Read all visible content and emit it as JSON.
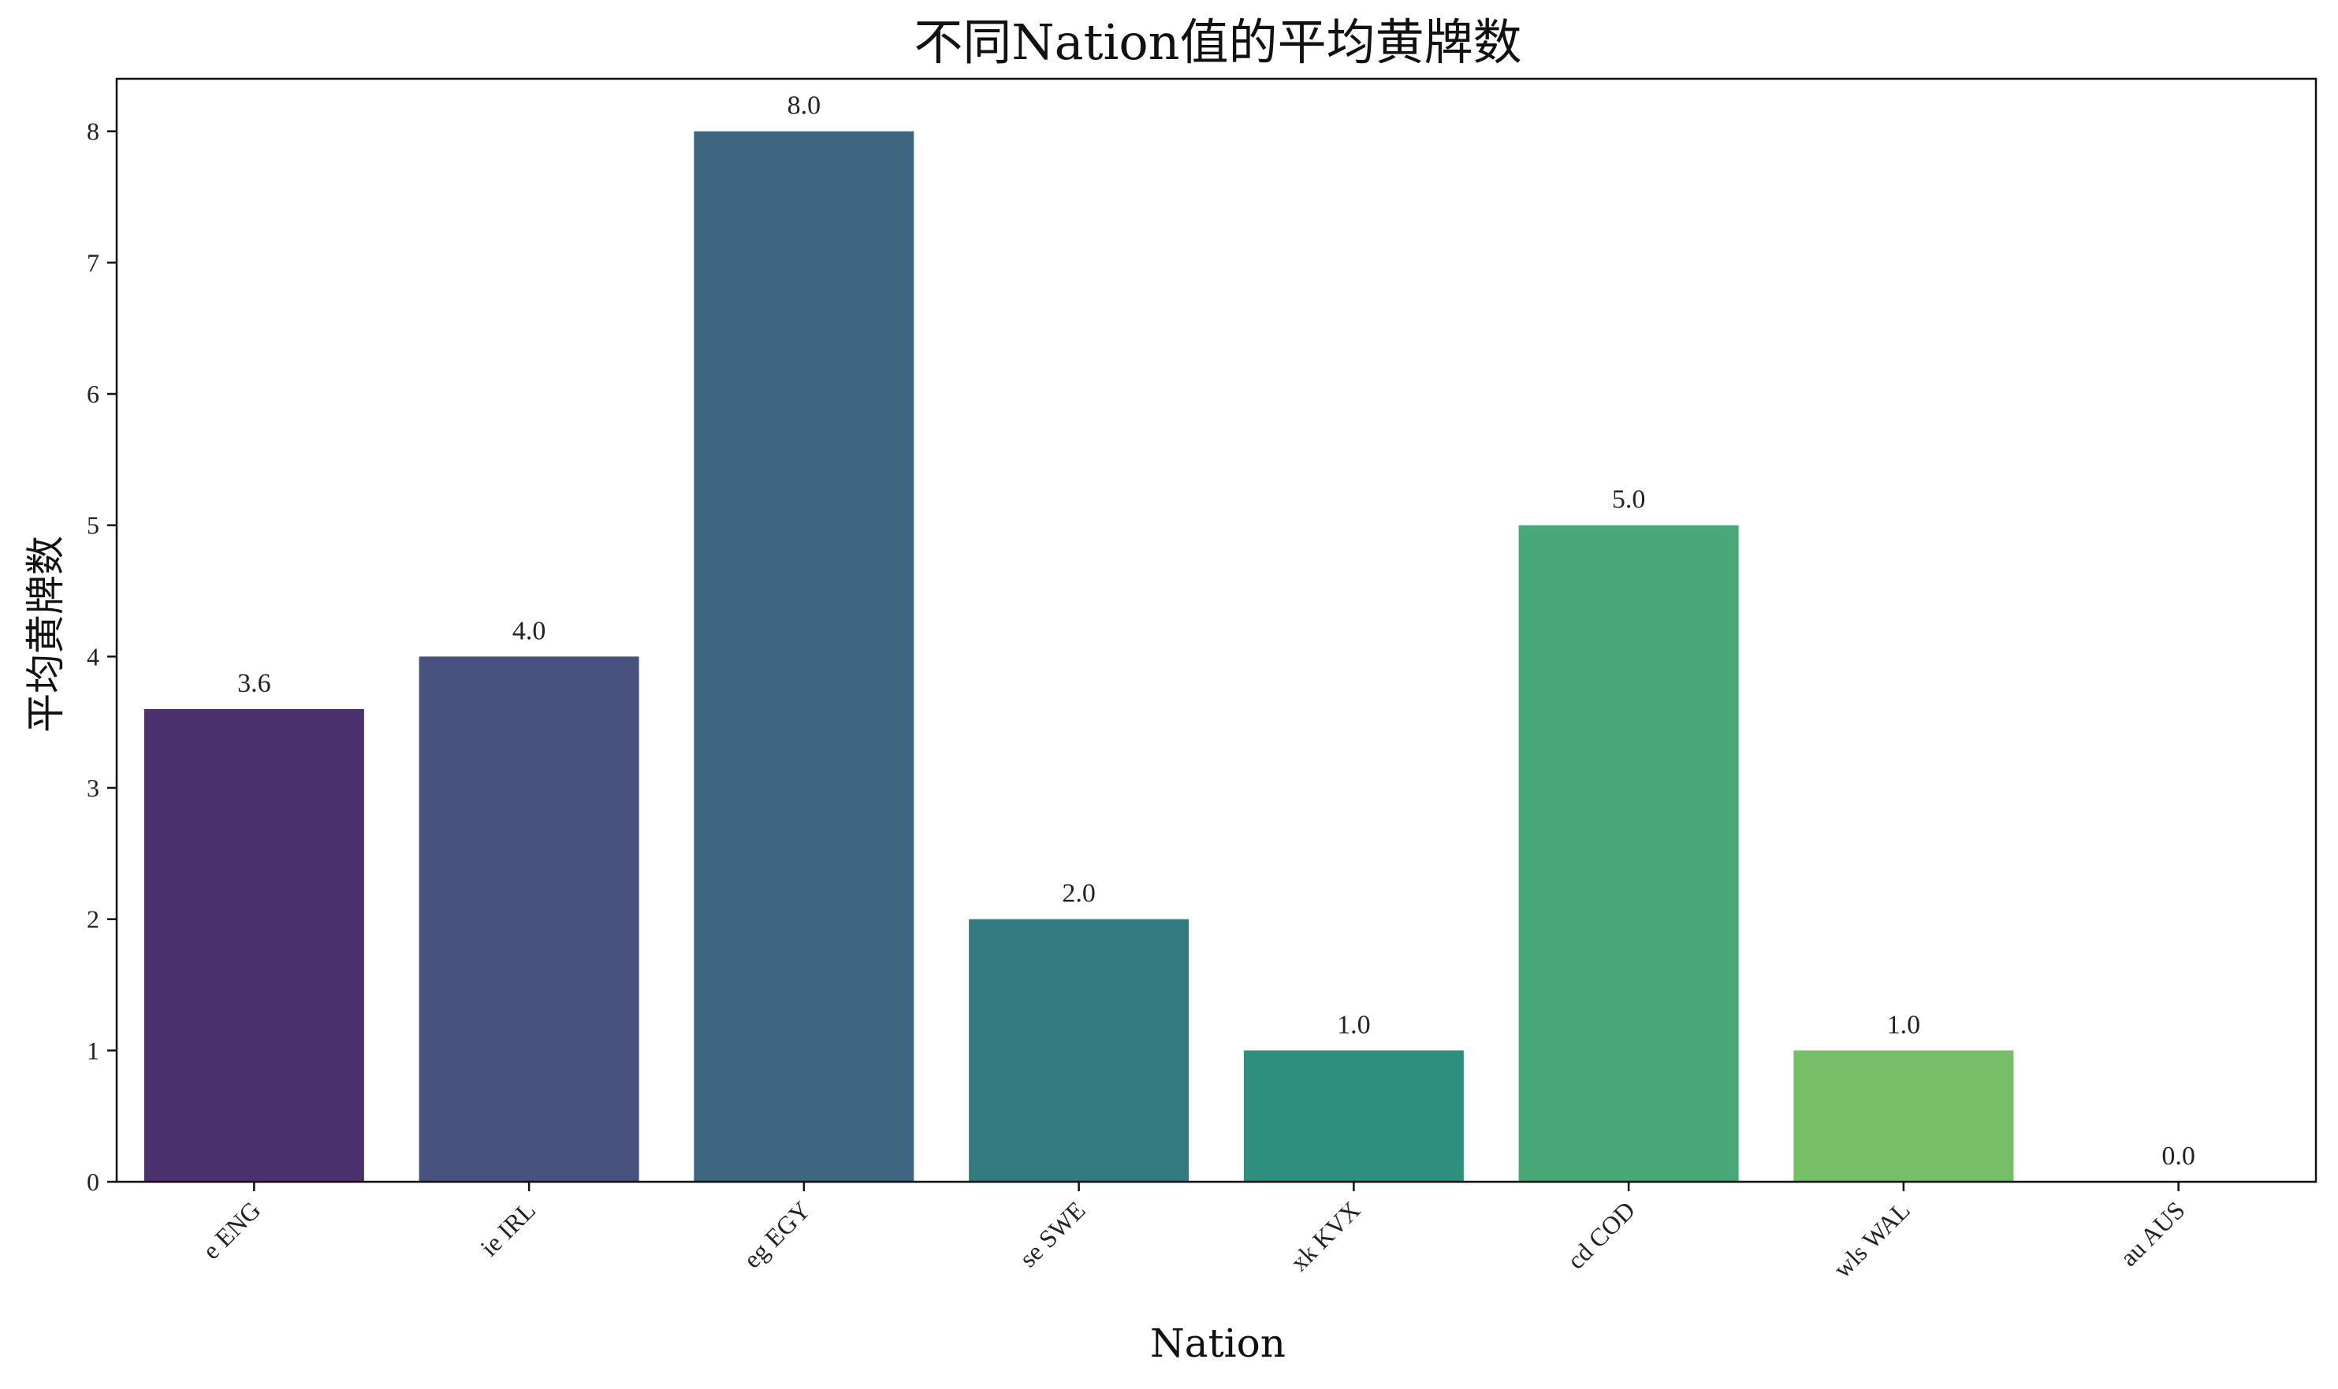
{
  "chart_data": {
    "type": "bar",
    "title": "不同Nation值的平均黄牌数",
    "xlabel": "Nation",
    "ylabel": "平均黄牌数",
    "categories": [
      "e ENG",
      "ie IRL",
      "eg EGY",
      "se SWE",
      "xk KVX",
      "cd COD",
      "wls WAL",
      "au AUS"
    ],
    "values": [
      3.6,
      4.0,
      8.0,
      2.0,
      1.0,
      5.0,
      1.0,
      0.0
    ],
    "value_labels": [
      "3.6",
      "4.0",
      "8.0",
      "2.0",
      "1.0",
      "5.0",
      "1.0",
      "0.0"
    ],
    "colors": [
      "#4b326e",
      "#48527e",
      "#3e6680",
      "#357a80",
      "#2e8f7e",
      "#48a877",
      "#76be67",
      "#b8d94e"
    ],
    "ylim": [
      0,
      8.4
    ],
    "yticks": [
      0,
      1,
      2,
      3,
      4,
      5,
      6,
      7,
      8
    ],
    "grid": false,
    "legend": "none"
  }
}
